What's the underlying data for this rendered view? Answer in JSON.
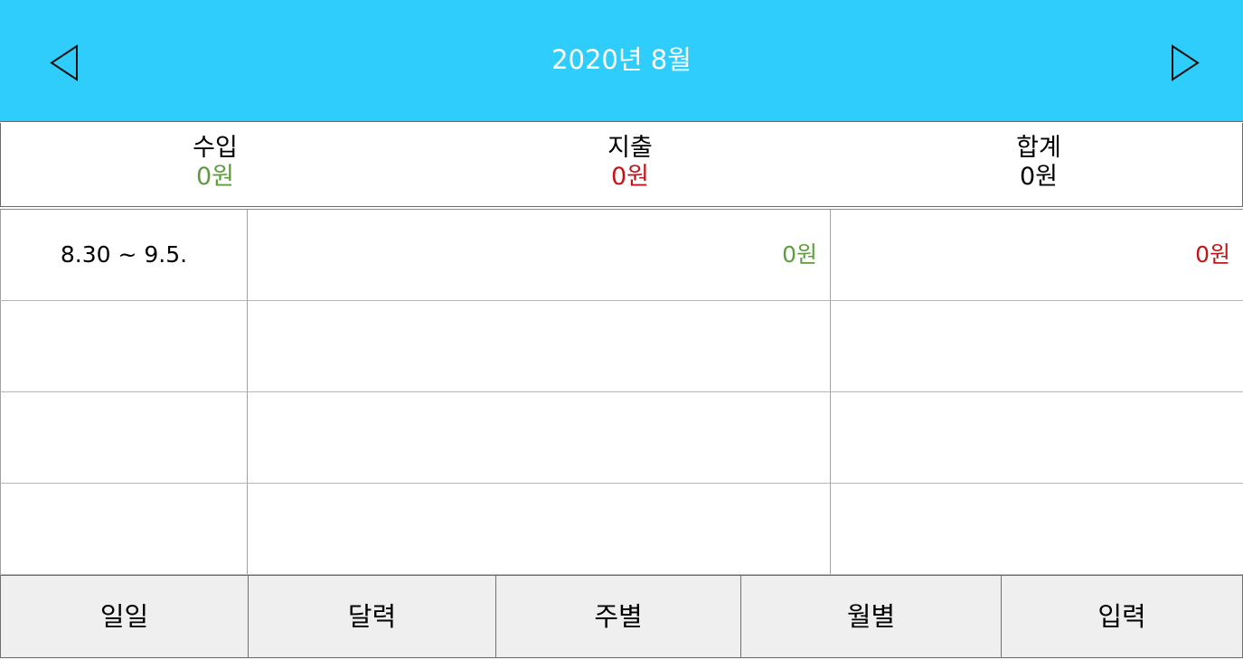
{
  "header": {
    "title": "2020년 8월",
    "prev_icon": "triangle-left-icon",
    "next_icon": "triangle-right-icon",
    "bg_color": "#2ecdfb"
  },
  "summary": {
    "income": {
      "label": "수입",
      "value": "0원",
      "color": "#5e9e3a"
    },
    "expense": {
      "label": "지출",
      "value": "0원",
      "color": "#c2141b"
    },
    "total": {
      "label": "합계",
      "value": "0원"
    }
  },
  "weeks": [
    {
      "range": "8.30 ~ 9.5.",
      "income": "0원",
      "expense": "0원"
    }
  ],
  "tabs": [
    {
      "label": "일일"
    },
    {
      "label": "달력"
    },
    {
      "label": "주별"
    },
    {
      "label": "월별"
    },
    {
      "label": "입력"
    }
  ]
}
